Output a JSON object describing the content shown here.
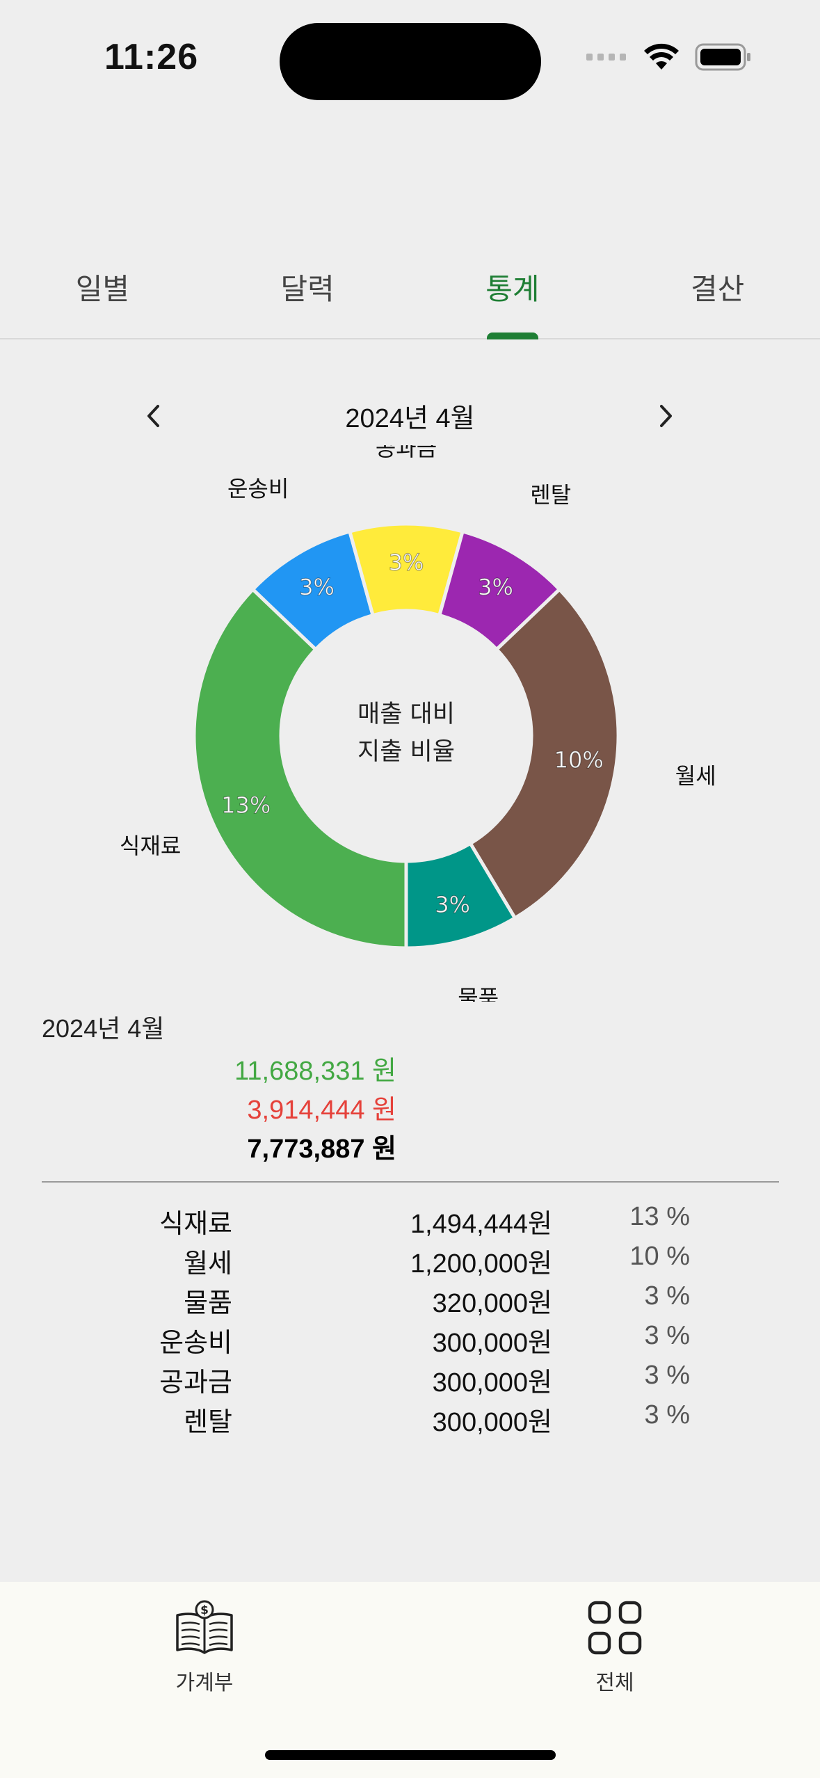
{
  "status_bar": {
    "time": "11:26"
  },
  "tabs": [
    {
      "label": "일별",
      "active": false
    },
    {
      "label": "달력",
      "active": false
    },
    {
      "label": "통계",
      "active": true
    },
    {
      "label": "결산",
      "active": false
    }
  ],
  "month_nav": {
    "title": "2024년 4월",
    "prev_icon": "chevron-left-icon",
    "next_icon": "chevron-right-icon"
  },
  "chart_data": {
    "type": "pie",
    "center_label_line1": "매출 대비",
    "center_label_line2": "지출 비율",
    "categories": [
      "식재료",
      "월세",
      "물품",
      "운송비",
      "공과금",
      "렌탈"
    ],
    "values": [
      13,
      10,
      3,
      3,
      3,
      3
    ],
    "value_labels": [
      "13%",
      "10%",
      "3%",
      "3%",
      "3%",
      "3%"
    ],
    "colors": {
      "식재료": "#4caf50",
      "월세": "#795548",
      "물품": "#009688",
      "운송비": "#2196f3",
      "공과금": "#ffeb3b",
      "렌탈": "#9c27b0"
    }
  },
  "summary": {
    "month": "2024년 4월",
    "income": "11,688,331 원",
    "expense": "3,914,444 원",
    "net": "7,773,887 원"
  },
  "breakdown": [
    {
      "name": "식재료",
      "amount": "1,494,444원",
      "percent": "13 %"
    },
    {
      "name": "월세",
      "amount": "1,200,000원",
      "percent": "10 %"
    },
    {
      "name": "물품",
      "amount": "320,000원",
      "percent": "3 %"
    },
    {
      "name": "운송비",
      "amount": "300,000원",
      "percent": "3 %"
    },
    {
      "name": "공과금",
      "amount": "300,000원",
      "percent": "3 %"
    },
    {
      "name": "렌탈",
      "amount": "300,000원",
      "percent": "3 %"
    }
  ],
  "bottom_nav": [
    {
      "label": "가계부",
      "icon": "ledger-book-icon"
    },
    {
      "label": "전체",
      "icon": "grid-icon"
    }
  ],
  "colors": {
    "accent": "#1e7e34",
    "income": "#43a843",
    "expense": "#e5413a"
  }
}
